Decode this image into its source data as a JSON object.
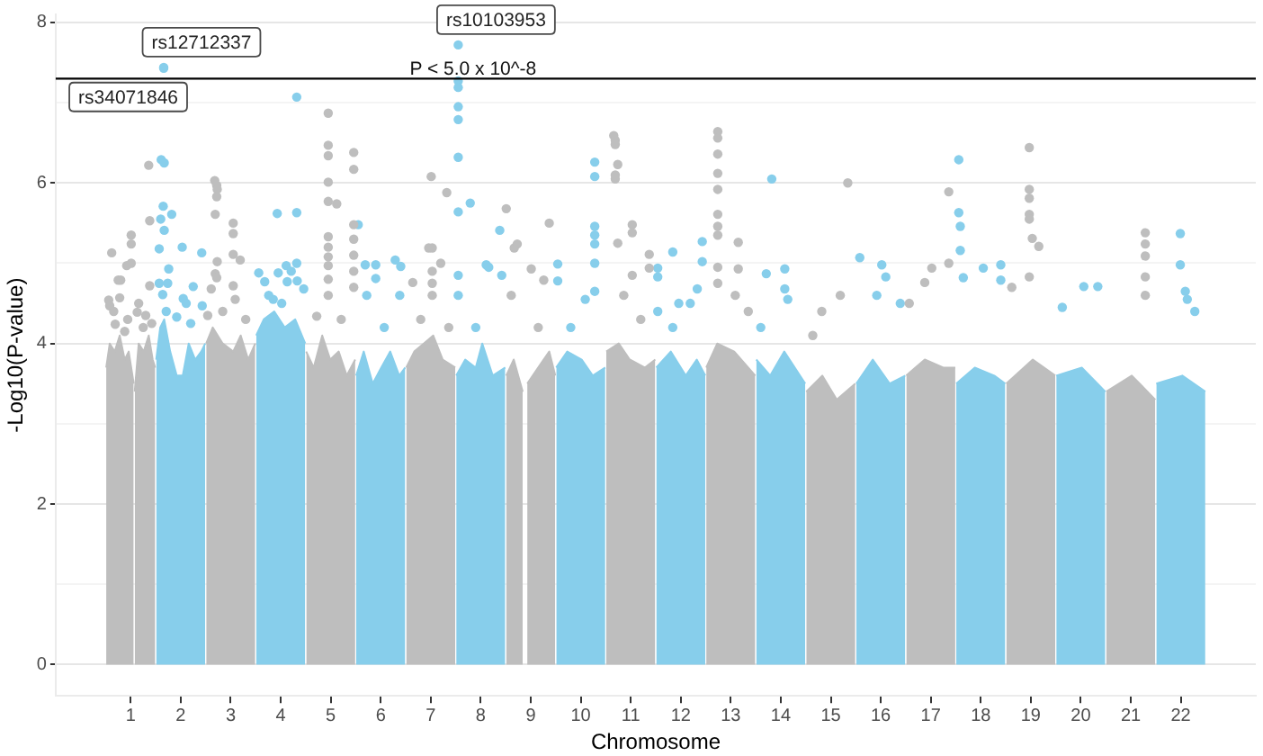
{
  "chart_data": {
    "type": "scatter",
    "xlabel": "Chromosome",
    "ylabel": "-Log10(P-value)",
    "xlim": [
      -0.5,
      23.5
    ],
    "xticks": [
      1,
      2,
      3,
      4,
      5,
      6,
      7,
      8,
      9,
      10,
      11,
      12,
      13,
      14,
      15,
      16,
      17,
      18,
      19,
      20,
      21,
      22
    ],
    "ylim": [
      -0.39,
      8.1
    ],
    "yticks": [
      0,
      {
        "value": 1,
        "label": null
      },
      2,
      {
        "value": 3,
        "label": null
      },
      4,
      {
        "value": 5,
        "label": null
      },
      6,
      {
        "value": 7,
        "label": null
      },
      8
    ],
    "grid": "y",
    "ref_lines": [
      {
        "axis": "y",
        "value": 7.3,
        "label": "P < 5.0 x 10^-8",
        "color": "#000000"
      }
    ],
    "series": [
      {
        "type": "area",
        "color": "#bebebe",
        "x": [
          0.51,
          0.58,
          0.68,
          0.78,
          0.88,
          0.96,
          1.06
        ],
        "values": [
          3.7,
          4.0,
          3.9,
          4.1,
          3.8,
          3.9,
          3.5
        ]
      },
      {
        "type": "area",
        "color": "#bebebe",
        "x": [
          1.08,
          1.16,
          1.26,
          1.36,
          1.44,
          1.49
        ],
        "values": [
          3.4,
          4.0,
          3.9,
          4.1,
          3.8,
          3.7
        ]
      },
      {
        "type": "area",
        "color": "#87ceeb",
        "x": [
          1.51,
          1.59,
          1.67,
          1.79,
          1.92,
          2.04,
          2.16,
          2.29,
          2.41,
          2.49
        ],
        "values": [
          3.8,
          4.2,
          4.3,
          3.9,
          3.6,
          3.6,
          4.0,
          3.8,
          3.9,
          4.0
        ]
      },
      {
        "type": "area",
        "color": "#bebebe",
        "x": [
          2.51,
          2.64,
          2.84,
          3.05,
          3.2,
          3.35,
          3.49
        ],
        "values": [
          4.0,
          4.2,
          4.0,
          3.9,
          4.1,
          3.8,
          4.0
        ]
      },
      {
        "type": "area",
        "color": "#87ceeb",
        "x": [
          3.51,
          3.66,
          3.87,
          4.08,
          4.29,
          4.49
        ],
        "values": [
          4.1,
          4.3,
          4.4,
          4.2,
          4.3,
          4.0
        ]
      },
      {
        "type": "area",
        "color": "#bebebe",
        "x": [
          4.51,
          4.66,
          4.83,
          4.99,
          5.16,
          5.32,
          5.49
        ],
        "values": [
          3.9,
          3.7,
          4.1,
          3.8,
          3.9,
          3.6,
          3.8
        ]
      },
      {
        "type": "area",
        "color": "#87ceeb",
        "x": [
          5.51,
          5.66,
          5.84,
          6.01,
          6.19,
          6.37,
          6.49
        ],
        "values": [
          3.6,
          3.9,
          3.5,
          3.7,
          3.9,
          3.6,
          3.7
        ]
      },
      {
        "type": "area",
        "color": "#bebebe",
        "x": [
          6.51,
          6.67,
          6.86,
          7.05,
          7.24,
          7.49
        ],
        "values": [
          3.7,
          3.9,
          4.0,
          4.1,
          3.8,
          3.7
        ]
      },
      {
        "type": "area",
        "color": "#87ceeb",
        "x": [
          7.51,
          7.69,
          7.9,
          8.03,
          8.24,
          8.49
        ],
        "values": [
          3.6,
          3.8,
          3.7,
          4.0,
          3.6,
          3.7
        ]
      },
      {
        "type": "area",
        "color": "#bebebe",
        "x": [
          8.51,
          8.66,
          8.84
        ],
        "values": [
          3.6,
          3.8,
          3.4
        ]
      },
      {
        "type": "area",
        "color": "#bebebe",
        "x": [
          8.93,
          9.15,
          9.37,
          9.49
        ],
        "values": [
          3.5,
          3.7,
          3.9,
          3.6
        ]
      },
      {
        "type": "area",
        "color": "#87ceeb",
        "x": [
          9.51,
          9.73,
          10.02,
          10.24,
          10.49
        ],
        "values": [
          3.7,
          3.9,
          3.8,
          3.6,
          3.7
        ]
      },
      {
        "type": "area",
        "color": "#bebebe",
        "x": [
          10.51,
          10.76,
          10.98,
          11.28,
          11.49
        ],
        "values": [
          3.9,
          4.0,
          3.8,
          3.7,
          3.8
        ]
      },
      {
        "type": "area",
        "color": "#87ceeb",
        "x": [
          11.51,
          11.8,
          12.1,
          12.32,
          12.49
        ],
        "values": [
          3.7,
          3.9,
          3.6,
          3.8,
          3.6
        ]
      },
      {
        "type": "area",
        "color": "#bebebe",
        "x": [
          12.51,
          12.73,
          13.07,
          13.49
        ],
        "values": [
          3.7,
          4.0,
          3.9,
          3.6
        ]
      },
      {
        "type": "area",
        "color": "#87ceeb",
        "x": [
          13.51,
          13.79,
          14.07,
          14.49
        ],
        "values": [
          3.8,
          3.6,
          3.9,
          3.5
        ]
      },
      {
        "type": "area",
        "color": "#bebebe",
        "x": [
          14.51,
          14.83,
          15.12,
          15.49
        ],
        "values": [
          3.4,
          3.6,
          3.3,
          3.5
        ]
      },
      {
        "type": "area",
        "color": "#87ceeb",
        "x": [
          15.51,
          15.84,
          16.18,
          16.49
        ],
        "values": [
          3.5,
          3.8,
          3.5,
          3.6
        ]
      },
      {
        "type": "area",
        "color": "#bebebe",
        "x": [
          16.51,
          16.88,
          17.25,
          17.49
        ],
        "values": [
          3.6,
          3.8,
          3.7,
          3.7
        ]
      },
      {
        "type": "area",
        "color": "#87ceeb",
        "x": [
          17.51,
          17.88,
          18.27,
          18.49
        ],
        "values": [
          3.5,
          3.7,
          3.6,
          3.5
        ]
      },
      {
        "type": "area",
        "color": "#bebebe",
        "x": [
          18.51,
          19.04,
          19.49
        ],
        "values": [
          3.5,
          3.8,
          3.6
        ]
      },
      {
        "type": "area",
        "color": "#87ceeb",
        "x": [
          19.51,
          20.02,
          20.49
        ],
        "values": [
          3.6,
          3.7,
          3.4
        ]
      },
      {
        "type": "area",
        "color": "#bebebe",
        "x": [
          20.51,
          21.02,
          21.49
        ],
        "values": [
          3.4,
          3.6,
          3.3
        ]
      },
      {
        "type": "area",
        "color": "#87ceeb",
        "x": [
          21.51,
          22.03,
          22.49
        ],
        "values": [
          3.5,
          3.6,
          3.4
        ]
      },
      {
        "color": "#bebebe",
        "marker": "circle",
        "x": [
          1.36,
          1.38,
          0.62,
          1.01,
          1.01,
          0.92,
          1.01,
          0.75,
          0.8,
          1.38,
          0.56,
          0.58,
          1.16,
          0.78,
          1.13,
          1.25,
          0.69,
          0.88,
          0.94,
          1.3,
          1.42,
          0.66,
          2.68,
          2.72,
          2.73,
          2.72,
          2.69,
          2.73,
          2.69,
          2.72,
          2.61,
          3.05,
          3.05,
          3.19,
          3.05,
          3.05,
          3.09,
          2.84,
          3.3,
          2.54,
          4.95,
          4.95,
          4.95,
          4.95,
          4.95,
          5.12,
          4.95,
          4.95,
          4.95,
          4.95,
          4.95,
          4.95,
          5.46,
          5.46,
          5.46,
          5.46,
          5.46,
          5.46,
          5.46,
          4.72,
          5.21,
          7.01,
          7.32,
          6.96,
          7.03,
          7.2,
          7.03,
          7.03,
          7.03,
          6.64,
          6.8,
          7.36,
          8.51,
          8.67,
          8.73,
          9.01,
          9.37,
          9.26,
          8.61,
          9.15,
          10.66,
          10.69,
          10.69,
          10.74,
          10.69,
          10.69,
          11.03,
          11.03,
          10.74,
          11.37,
          11.37,
          11.03,
          10.86,
          11.2,
          12.74,
          12.74,
          12.74,
          12.74,
          12.74,
          12.74,
          12.74,
          12.74,
          13.15,
          12.74,
          12.74,
          13.15,
          13.09,
          13.35,
          15.34,
          15.19,
          14.82,
          14.64,
          17.36,
          17.36,
          16.88,
          17.02,
          16.57,
          18.97,
          18.97,
          18.97,
          18.97,
          18.97,
          19.03,
          19.16,
          18.97,
          18.62,
          21.29,
          21.29,
          21.29,
          21.29,
          21.29
        ],
        "values": [
          6.22,
          5.53,
          5.13,
          5.35,
          5.24,
          4.97,
          5.0,
          4.79,
          4.79,
          4.72,
          4.54,
          4.47,
          4.5,
          4.57,
          4.39,
          4.2,
          4.24,
          4.15,
          4.3,
          4.35,
          4.25,
          4.4,
          6.03,
          5.97,
          5.92,
          5.83,
          5.61,
          5.02,
          4.87,
          4.82,
          4.68,
          5.5,
          5.37,
          5.04,
          5.11,
          4.72,
          4.55,
          4.4,
          4.3,
          4.35,
          6.87,
          6.47,
          6.34,
          6.01,
          5.77,
          5.74,
          5.33,
          5.2,
          5.08,
          4.97,
          4.8,
          4.6,
          6.38,
          6.17,
          5.48,
          5.3,
          5.1,
          4.9,
          4.7,
          4.34,
          4.3,
          6.08,
          5.88,
          5.19,
          5.19,
          5.0,
          4.9,
          4.75,
          4.6,
          4.76,
          4.3,
          4.2,
          5.68,
          5.19,
          5.24,
          4.93,
          5.5,
          4.79,
          4.6,
          4.2,
          6.59,
          6.53,
          6.48,
          6.23,
          6.1,
          6.05,
          5.48,
          5.38,
          5.25,
          5.11,
          4.94,
          4.85,
          4.6,
          4.3,
          6.64,
          6.56,
          6.36,
          6.12,
          5.92,
          5.61,
          5.46,
          5.35,
          5.26,
          4.95,
          4.75,
          4.93,
          4.6,
          4.4,
          6.0,
          4.6,
          4.4,
          4.1,
          5.89,
          5.0,
          4.76,
          4.94,
          4.5,
          6.44,
          5.92,
          5.81,
          5.61,
          5.55,
          5.31,
          5.21,
          4.83,
          4.7,
          5.38,
          5.24,
          5.09,
          4.83,
          4.6
        ]
      },
      {
        "color": "#87ceeb",
        "marker": "circle",
        "x": [
          1.66,
          1.66,
          1.61,
          1.67,
          1.65,
          1.82,
          1.6,
          1.67,
          1.57,
          2.03,
          2.42,
          1.76,
          1.57,
          1.74,
          2.25,
          1.64,
          2.05,
          2.11,
          2.43,
          1.92,
          2.2,
          1.71,
          4.32,
          3.93,
          4.32,
          4.32,
          4.11,
          3.95,
          4.33,
          4.46,
          3.56,
          3.68,
          3.85,
          4.13,
          4.21,
          3.76,
          4.02,
          5.55,
          5.69,
          5.9,
          5.9,
          6.29,
          6.4,
          5.72,
          6.38,
          6.07,
          7.55,
          7.55,
          7.55,
          7.55,
          7.55,
          7.55,
          7.55,
          7.79,
          8.38,
          8.11,
          8.16,
          7.55,
          7.55,
          8.42,
          7.9,
          10.28,
          10.28,
          10.28,
          10.28,
          10.28,
          10.28,
          9.54,
          9.54,
          10.09,
          10.28,
          9.8,
          11.84,
          11.54,
          11.54,
          12.43,
          12.43,
          12.33,
          12.19,
          11.96,
          11.54,
          11.84,
          13.82,
          13.71,
          14.08,
          14.08,
          14.14,
          13.6,
          15.58,
          16.02,
          16.1,
          15.92,
          16.39,
          17.56,
          17.56,
          17.59,
          17.59,
          17.65,
          18.05,
          18.4,
          18.4,
          20.06,
          20.34,
          19.63,
          21.99,
          21.99,
          22.09,
          22.13,
          22.28
        ],
        "values": [
          7.44,
          7.43,
          6.29,
          6.25,
          5.71,
          5.61,
          5.55,
          5.41,
          5.18,
          5.2,
          5.13,
          4.93,
          4.75,
          4.75,
          4.71,
          4.61,
          4.56,
          4.5,
          4.47,
          4.33,
          4.25,
          4.4,
          7.07,
          5.62,
          5.63,
          5.0,
          4.97,
          4.88,
          4.78,
          4.68,
          4.88,
          4.77,
          4.55,
          4.77,
          4.9,
          4.6,
          4.5,
          5.48,
          4.98,
          4.98,
          4.81,
          5.04,
          4.96,
          4.6,
          4.6,
          4.2,
          7.72,
          7.27,
          7.19,
          6.95,
          6.79,
          6.32,
          5.64,
          5.75,
          5.41,
          4.98,
          4.95,
          4.85,
          4.6,
          4.85,
          4.2,
          6.26,
          6.08,
          5.46,
          5.35,
          5.24,
          5.0,
          4.99,
          4.78,
          4.55,
          4.65,
          4.2,
          5.14,
          4.94,
          4.83,
          5.27,
          5.02,
          4.68,
          4.5,
          4.5,
          4.4,
          4.2,
          6.05,
          4.87,
          4.93,
          4.68,
          4.55,
          4.2,
          5.07,
          4.98,
          4.83,
          4.6,
          4.5,
          6.29,
          5.63,
          5.46,
          5.16,
          4.82,
          4.94,
          4.98,
          4.79,
          4.71,
          4.71,
          4.45,
          5.37,
          4.98,
          4.65,
          4.55,
          4.4
        ],
        "value_labels": [
          "rs12712337",
          "rs34071846",
          null,
          null,
          null,
          null,
          null,
          null,
          null,
          null,
          null,
          null,
          null,
          null,
          null,
          null,
          null,
          null,
          null,
          null,
          null,
          null,
          null,
          null,
          null,
          null,
          null,
          null,
          null,
          null,
          null,
          null,
          null,
          null,
          null,
          null,
          null,
          null,
          null,
          null,
          null,
          null,
          null,
          null,
          null,
          null,
          "rs10103953",
          null,
          null,
          null,
          null,
          null,
          null,
          null,
          null,
          null,
          null,
          null,
          null,
          null,
          null,
          null,
          null,
          null,
          null,
          null,
          null,
          null,
          null,
          null,
          null,
          null,
          null,
          null,
          null,
          null,
          null,
          null,
          null,
          null,
          null,
          null,
          null,
          null,
          null,
          null,
          null,
          null,
          null,
          null,
          null,
          null,
          null,
          null,
          null,
          null,
          null,
          null,
          null,
          null,
          null,
          null,
          null,
          null,
          null,
          null,
          null,
          null,
          null
        ]
      }
    ]
  }
}
